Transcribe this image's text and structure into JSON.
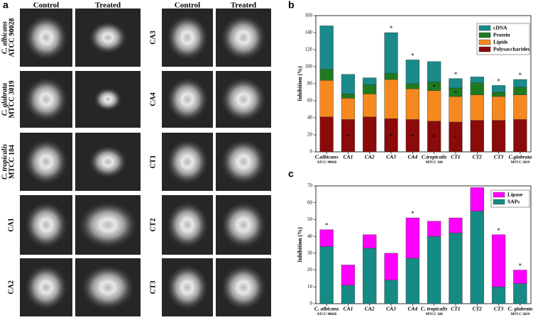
{
  "panel_a": {
    "letter": "a",
    "columns": [
      "Control",
      "Treated",
      "Control",
      "Treated"
    ],
    "rows_left": [
      [
        "C. albicans",
        "ATCC 90028"
      ],
      [
        "C. glabrata",
        "MTCC 3019"
      ],
      [
        "C. tropicalis",
        "MTCC 184"
      ],
      [
        "CA1"
      ],
      [
        "CA2"
      ]
    ],
    "rows_right": [
      "CA3",
      "CA4",
      "CT1",
      "CT2",
      "CT3"
    ]
  },
  "chart_data": [
    {
      "type": "stacked-bar",
      "panel_letter": "b",
      "ylabel": "Inhibition (%)",
      "categories": [
        "C.albicans",
        "CA1",
        "CA2",
        "CA3",
        "CA4",
        "C.tropicalis",
        "CT1",
        "CT2",
        "CT3",
        "C.glabrata"
      ],
      "category_notes": [
        "ATCC 90028",
        null,
        null,
        null,
        null,
        "MTCC 184",
        null,
        null,
        null,
        "MTCC 3019"
      ],
      "ylim": [
        0,
        160
      ],
      "yticks": [
        0,
        20,
        40,
        60,
        80,
        100,
        120,
        140,
        160
      ],
      "significance_mark": "*",
      "series": [
        {
          "name": "Polysaccharides",
          "color": "#8b0a0a",
          "values": [
            41,
            38,
            41,
            39,
            38,
            36,
            35,
            37,
            37,
            38
          ],
          "significance": [
            false,
            true,
            false,
            true,
            true,
            true,
            true,
            false,
            false,
            false
          ]
        },
        {
          "name": "Lipids",
          "color": "#f5891f",
          "values": [
            43,
            25,
            27,
            46,
            36,
            36,
            30,
            30,
            28,
            29
          ],
          "significance": [
            false,
            false,
            false,
            false,
            false,
            false,
            false,
            false,
            false,
            false
          ]
        },
        {
          "name": "Protein",
          "color": "#1e7a1e",
          "values": [
            13,
            5,
            11,
            7,
            6,
            10,
            10,
            14,
            5,
            9
          ],
          "significance": [
            false,
            false,
            false,
            false,
            false,
            true,
            true,
            false,
            false,
            false
          ]
        },
        {
          "name": "cDNA",
          "color": "#1a8a8a",
          "values": [
            51,
            23,
            8,
            48,
            28,
            24,
            11,
            7,
            8,
            9
          ],
          "significance": [
            false,
            false,
            false,
            true,
            true,
            false,
            true,
            false,
            true,
            true
          ]
        }
      ]
    },
    {
      "type": "stacked-bar",
      "panel_letter": "c",
      "ylabel": "Inhibition (%)",
      "categories": [
        "C. albicans",
        "CA1",
        "CA2",
        "CA3",
        "CA4",
        "C. tropicalis",
        "CT1",
        "CT2",
        "CT3",
        "C. glabrata"
      ],
      "category_notes": [
        "ATCC 90028",
        null,
        null,
        null,
        null,
        "MTCC 184",
        null,
        null,
        null,
        "MTCC 3019"
      ],
      "ylim": [
        0,
        70
      ],
      "yticks": [
        0,
        10,
        20,
        30,
        40,
        50,
        60,
        70
      ],
      "significance_mark": "*",
      "series": [
        {
          "name": "SAPs",
          "color": "#168a84",
          "values": [
            34,
            11,
            33,
            14,
            27,
            40,
            42,
            55,
            10,
            12
          ],
          "significance": [
            false,
            false,
            false,
            false,
            false,
            false,
            false,
            false,
            false,
            false
          ]
        },
        {
          "name": "Lipase",
          "color": "#ff00ff",
          "values": [
            10,
            12,
            8,
            16,
            24,
            9,
            9,
            14,
            31,
            8
          ],
          "significance": [
            true,
            false,
            false,
            false,
            true,
            false,
            false,
            false,
            true,
            true
          ]
        }
      ]
    }
  ]
}
